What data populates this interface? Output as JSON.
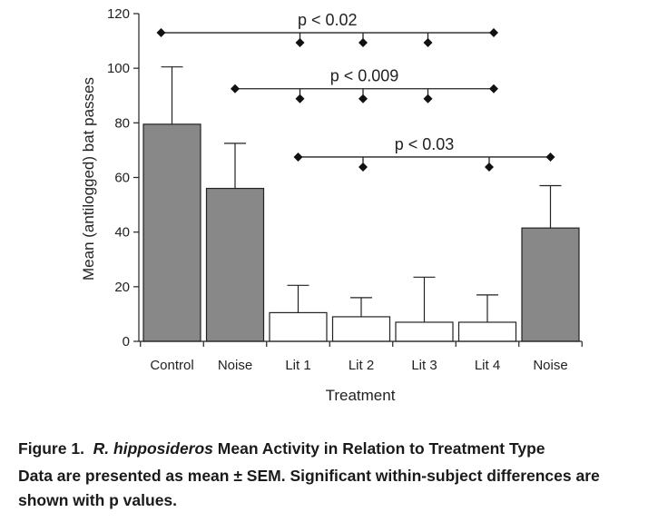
{
  "chart_data": {
    "type": "bar",
    "categories": [
      "Control",
      "Noise",
      "Lit 1",
      "Lit 2",
      "Lit 3",
      "Lit 4",
      "Noise"
    ],
    "values": [
      79.5,
      56,
      10.5,
      9,
      7,
      7,
      41.5
    ],
    "errors": [
      21,
      16.5,
      10,
      7,
      16.5,
      10,
      15.5
    ],
    "bar_colors": [
      "#888888",
      "#888888",
      "#ffffff",
      "#ffffff",
      "#ffffff",
      "#ffffff",
      "#888888"
    ],
    "xlabel": "Treatment",
    "ylabel": "Mean (antilogged) bat passes",
    "ylim": [
      0,
      120
    ],
    "yticks": [
      0,
      20,
      40,
      60,
      80,
      100,
      120
    ],
    "grid": false,
    "significance": [
      {
        "label": "p < 0.02",
        "y": 113,
        "from": 0,
        "to": 5,
        "markers": [
          2,
          3,
          4
        ]
      },
      {
        "label": "p < 0.009",
        "y": 92.5,
        "from": 1,
        "to": 5,
        "markers": [
          2,
          3,
          4
        ]
      },
      {
        "label": "p < 0.03",
        "y": 67.5,
        "from": 2,
        "to": 6,
        "markers": [
          3,
          5
        ]
      }
    ]
  },
  "caption": {
    "prefix": "Figure 1.",
    "species": "R. hipposideros",
    "title_rest": "Mean Activity in Relation to Treatment Type",
    "body": "Data are presented as mean ± SEM. Significant within-subject differences are shown with p values."
  }
}
